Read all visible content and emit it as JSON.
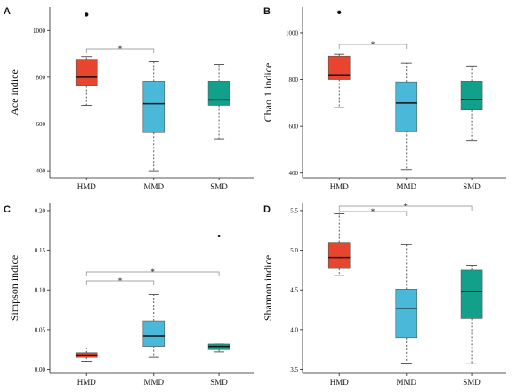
{
  "chart_data": [
    {
      "type": "boxplot",
      "panel": "A",
      "ylabel": "Ace indice",
      "ylim": [
        370,
        1100
      ],
      "yticks": [
        400,
        600,
        800,
        1000
      ],
      "categories": [
        "HMD",
        "MMD",
        "SMD"
      ],
      "boxes": [
        {
          "name": "HMD",
          "color": "#e8452e",
          "min": 680,
          "q1": 763,
          "median": 800,
          "q3": 877,
          "max": 888,
          "outliers": [
            1068
          ]
        },
        {
          "name": "MMD",
          "color": "#4ab8d8",
          "min": 400,
          "q1": 563,
          "median": 687,
          "q3": 783,
          "max": 866,
          "outliers": []
        },
        {
          "name": "SMD",
          "color": "#13a08a",
          "min": 537,
          "q1": 680,
          "median": 703,
          "q3": 783,
          "max": 855,
          "outliers": []
        }
      ],
      "significance": [
        {
          "from": "HMD",
          "to": "MMD",
          "label": "*"
        }
      ]
    },
    {
      "type": "boxplot",
      "panel": "B",
      "ylabel": "Chao 1 indice",
      "ylim": [
        380,
        1110
      ],
      "yticks": [
        400,
        600,
        800,
        1000
      ],
      "categories": [
        "HMD",
        "MMD",
        "SMD"
      ],
      "boxes": [
        {
          "name": "HMD",
          "color": "#e8452e",
          "min": 680,
          "q1": 800,
          "median": 820,
          "q3": 900,
          "max": 908,
          "outliers": [
            1088
          ]
        },
        {
          "name": "MMD",
          "color": "#4ab8d8",
          "min": 415,
          "q1": 580,
          "median": 700,
          "q3": 790,
          "max": 870,
          "outliers": []
        },
        {
          "name": "SMD",
          "color": "#13a08a",
          "min": 537,
          "q1": 670,
          "median": 715,
          "q3": 793,
          "max": 858,
          "outliers": []
        }
      ],
      "significance": [
        {
          "from": "HMD",
          "to": "MMD",
          "label": "*"
        }
      ]
    },
    {
      "type": "boxplot",
      "panel": "C",
      "ylabel": "Simpson indice",
      "ylim": [
        -0.005,
        0.21
      ],
      "yticks": [
        "0.00",
        "0.05",
        "0.10",
        "0.15",
        "0.20"
      ],
      "categories": [
        "HMD",
        "MMD",
        "SMD"
      ],
      "boxes": [
        {
          "name": "HMD",
          "color": "#e8452e",
          "min": 0.01,
          "q1": 0.015,
          "median": 0.018,
          "q3": 0.021,
          "max": 0.027,
          "outliers": []
        },
        {
          "name": "MMD",
          "color": "#4ab8d8",
          "min": 0.015,
          "q1": 0.029,
          "median": 0.042,
          "q3": 0.061,
          "max": 0.094,
          "outliers": []
        },
        {
          "name": "SMD",
          "color": "#13a08a",
          "min": 0.022,
          "q1": 0.025,
          "median": 0.029,
          "q3": 0.032,
          "max": 0.032,
          "outliers": [
            0.168
          ]
        }
      ],
      "significance": [
        {
          "from": "HMD",
          "to": "MMD",
          "label": "*"
        },
        {
          "from": "HMD",
          "to": "SMD",
          "label": "*"
        }
      ]
    },
    {
      "type": "boxplot",
      "panel": "D",
      "ylabel": "Shannon indice",
      "ylim": [
        3.45,
        5.6
      ],
      "yticks": [
        "3.5",
        "4.0",
        "4.5",
        "5.0",
        "5.5"
      ],
      "categories": [
        "HMD",
        "MMD",
        "SMD"
      ],
      "boxes": [
        {
          "name": "HMD",
          "color": "#e8452e",
          "min": 4.68,
          "q1": 4.77,
          "median": 4.91,
          "q3": 5.1,
          "max": 5.46,
          "outliers": []
        },
        {
          "name": "MMD",
          "color": "#4ab8d8",
          "min": 3.58,
          "q1": 3.9,
          "median": 4.27,
          "q3": 4.51,
          "max": 5.07,
          "outliers": []
        },
        {
          "name": "SMD",
          "color": "#13a08a",
          "min": 3.57,
          "q1": 4.14,
          "median": 4.48,
          "q3": 4.75,
          "max": 4.81,
          "outliers": []
        }
      ],
      "significance": [
        {
          "from": "HMD",
          "to": "MMD",
          "label": "*"
        },
        {
          "from": "HMD",
          "to": "SMD",
          "label": "*"
        }
      ]
    }
  ]
}
